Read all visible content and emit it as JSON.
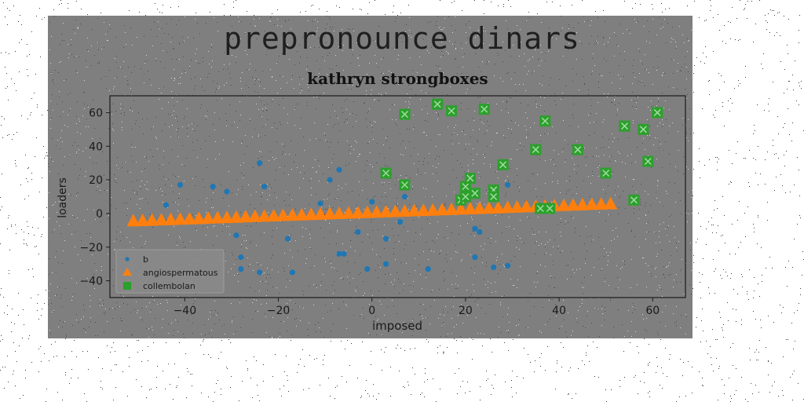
{
  "page": {
    "suptitle": "prepronounce dinars",
    "title": "kathryn strongboxes"
  },
  "colors": {
    "panel": "#7f7f7f",
    "b": "#1f77b4",
    "angiospermatous": "#ff7f0e",
    "collembolan": "#2ca02c"
  },
  "chart_data": {
    "type": "scatter",
    "title": "kathryn strongboxes",
    "xlabel": "imposed",
    "ylabel": "loaders",
    "xlim": [
      -56,
      67
    ],
    "ylim": [
      -50,
      70
    ],
    "xticks": [
      -40,
      -20,
      0,
      20,
      40,
      60
    ],
    "yticks": [
      -40,
      -20,
      0,
      20,
      40,
      60
    ],
    "grid": false,
    "legend_position": "lower-left",
    "series": [
      {
        "name": "b",
        "marker": "circle",
        "color": "#1f77b4",
        "points": [
          [
            -41,
            17
          ],
          [
            -44,
            5
          ],
          [
            -34,
            16
          ],
          [
            -31,
            13
          ],
          [
            -29,
            -13
          ],
          [
            -28,
            -26
          ],
          [
            -28,
            -33
          ],
          [
            -24,
            30
          ],
          [
            -23,
            16
          ],
          [
            -24,
            -35
          ],
          [
            -18,
            -15
          ],
          [
            -17,
            -35
          ],
          [
            -11,
            6
          ],
          [
            -9,
            20
          ],
          [
            -7,
            26
          ],
          [
            -7,
            -24
          ],
          [
            -6,
            -24
          ],
          [
            -3,
            -11
          ],
          [
            -1,
            -33
          ],
          [
            0,
            7
          ],
          [
            3,
            -15
          ],
          [
            3,
            -30
          ],
          [
            6,
            -5
          ],
          [
            7,
            10
          ],
          [
            12,
            -33
          ],
          [
            22,
            -9
          ],
          [
            23,
            -11
          ],
          [
            22,
            -26
          ],
          [
            26,
            -32
          ],
          [
            29,
            -31
          ],
          [
            29,
            17
          ]
        ]
      },
      {
        "name": "angiospermatous",
        "marker": "triangle",
        "color": "#ff7f0e",
        "x_start": -51,
        "x_end": 51,
        "x_step": 2,
        "y_intercept": 0.2,
        "slope": 0.1
      },
      {
        "name": "collembolan",
        "marker": "square-x",
        "color": "#2ca02c",
        "points": [
          [
            3,
            24
          ],
          [
            7,
            17
          ],
          [
            7,
            59
          ],
          [
            14,
            65
          ],
          [
            17,
            61
          ],
          [
            19,
            8
          ],
          [
            20,
            10
          ],
          [
            20,
            16
          ],
          [
            21,
            21
          ],
          [
            22,
            12
          ],
          [
            24,
            62
          ],
          [
            26,
            14
          ],
          [
            26,
            10
          ],
          [
            28,
            29
          ],
          [
            35,
            38
          ],
          [
            36,
            3
          ],
          [
            37,
            55
          ],
          [
            38,
            3
          ],
          [
            44,
            38
          ],
          [
            50,
            24
          ],
          [
            54,
            52
          ],
          [
            56,
            8
          ],
          [
            58,
            50
          ],
          [
            59,
            31
          ],
          [
            61,
            60
          ]
        ]
      }
    ]
  }
}
